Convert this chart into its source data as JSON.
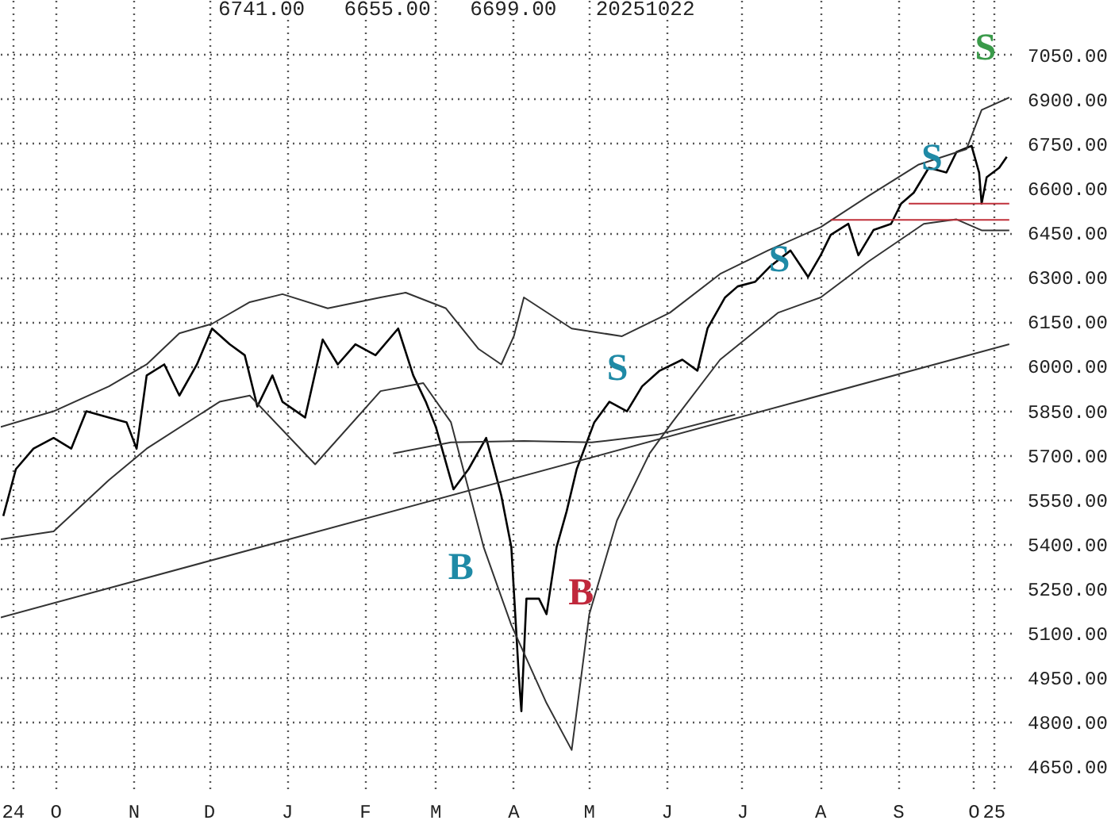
{
  "chart_data": {
    "type": "line",
    "xlim": [
      "2024-09-09",
      "2025-10-16"
    ],
    "ylim": [
      4576,
      7234
    ],
    "xticks": [
      {
        "value": "2024-09-14",
        "label": "24"
      },
      {
        "value": "2024-10-01",
        "label": "O"
      },
      {
        "value": "2024-11-01",
        "label": "N"
      },
      {
        "value": "2024-12-01",
        "label": "D"
      },
      {
        "value": "2025-01-01",
        "label": "J"
      },
      {
        "value": "2025-02-01",
        "label": "F"
      },
      {
        "value": "2025-03-01",
        "label": "M"
      },
      {
        "value": "2025-04-01",
        "label": "A"
      },
      {
        "value": "2025-05-01",
        "label": "M"
      },
      {
        "value": "2025-06-01",
        "label": "J"
      },
      {
        "value": "2025-07-01",
        "label": "J"
      },
      {
        "value": "2025-08-01",
        "label": "A"
      },
      {
        "value": "2025-09-01",
        "label": "S"
      },
      {
        "value": "2025-10-01",
        "label": "O"
      },
      {
        "value": "2025-10-09",
        "label": "25"
      }
    ],
    "yticks": [
      {
        "value": 4650,
        "label": "4650.00"
      },
      {
        "value": 4800,
        "label": "4800.00"
      },
      {
        "value": 4950,
        "label": "4950.00"
      },
      {
        "value": 5100,
        "label": "5100.00"
      },
      {
        "value": 5250,
        "label": "5250.00"
      },
      {
        "value": 5400,
        "label": "5400.00"
      },
      {
        "value": 5550,
        "label": "5550.00"
      },
      {
        "value": 5700,
        "label": "5700.00"
      },
      {
        "value": 5850,
        "label": "5850.00"
      },
      {
        "value": 6000,
        "label": "6000.00"
      },
      {
        "value": 6150,
        "label": "6150.00"
      },
      {
        "value": 6300,
        "label": "6300.00"
      },
      {
        "value": 6450,
        "label": "6450.00"
      },
      {
        "value": 6600,
        "label": "6600.00"
      },
      {
        "value": 6750,
        "label": "6750.00"
      },
      {
        "value": 6900,
        "label": "6900.00"
      },
      {
        "value": 7050,
        "label": "7050.00"
      }
    ],
    "grid": true,
    "annotations": [
      "6741.00",
      "6655.00",
      "6699.00",
      "20251022",
      "B",
      "B",
      "S",
      "S",
      "S",
      "S"
    ],
    "series": [
      {
        "color": "#000000",
        "x": [
          "2024-09-10",
          "2024-09-15",
          "2024-09-22",
          "2024-09-30",
          "2024-10-07",
          "2024-10-13",
          "2024-10-22",
          "2024-10-29",
          "2024-11-02",
          "2024-11-06",
          "2024-11-13",
          "2024-11-19",
          "2024-11-26",
          "2024-12-02",
          "2024-12-09",
          "2024-12-15",
          "2024-12-20",
          "2024-12-26",
          "2024-12-30",
          "2025-01-08",
          "2025-01-15",
          "2025-01-21",
          "2025-01-28",
          "2025-02-05",
          "2025-02-14",
          "2025-02-20",
          "2025-02-25",
          "2025-03-01",
          "2025-03-08",
          "2025-03-14",
          "2025-03-21",
          "2025-03-27",
          "2025-03-31",
          "2025-04-03",
          "2025-04-04",
          "2025-04-06",
          "2025-04-11",
          "2025-04-14",
          "2025-04-18",
          "2025-04-22",
          "2025-04-26",
          "2025-05-03",
          "2025-05-09",
          "2025-05-16",
          "2025-05-22",
          "2025-05-29",
          "2025-06-07",
          "2025-06-13",
          "2025-06-17",
          "2025-06-24",
          "2025-06-29",
          "2025-07-06",
          "2025-07-12",
          "2025-07-20",
          "2025-07-27",
          "2025-08-01",
          "2025-08-05",
          "2025-08-12",
          "2025-08-16",
          "2025-08-22",
          "2025-08-29",
          "2025-09-02",
          "2025-09-07",
          "2025-09-13",
          "2025-09-20",
          "2025-09-24",
          "2025-09-30",
          "2025-10-03",
          "2025-10-04",
          "2025-10-06",
          "2025-10-11",
          "2025-10-14"
        ],
        "values": [
          5497,
          5655,
          5724,
          5760,
          5724,
          5850,
          5829,
          5813,
          5724,
          5971,
          6008,
          5903,
          6008,
          6129,
          6076,
          6039,
          5866,
          5971,
          5882,
          5829,
          6092,
          6008,
          6076,
          6039,
          6129,
          5971,
          5882,
          5797,
          5587,
          5655,
          5760,
          5566,
          5392,
          4955,
          4839,
          5218,
          5218,
          5166,
          5392,
          5513,
          5655,
          5813,
          5882,
          5850,
          5934,
          5987,
          6024,
          5987,
          6129,
          6234,
          6271,
          6287,
          6339,
          6392,
          6303,
          6376,
          6445,
          6482,
          6376,
          6461,
          6482,
          6550,
          6587,
          6671,
          6655,
          6724,
          6745,
          6655,
          6550,
          6639,
          6671,
          6708
        ]
      },
      {
        "color": "#333333",
        "x": [
          "2024-09-09",
          "2024-09-30",
          "2024-10-22",
          "2024-11-06",
          "2024-11-19",
          "2024-12-02",
          "2024-12-17",
          "2024-12-30",
          "2025-01-17",
          "2025-02-07",
          "2025-02-17",
          "2025-03-05",
          "2025-03-18",
          "2025-03-27",
          "2025-04-01",
          "2025-04-05",
          "2025-04-24",
          "2025-05-14",
          "2025-06-02",
          "2025-06-22",
          "2025-07-11",
          "2025-08-01",
          "2025-08-20",
          "2025-09-09",
          "2025-09-28",
          "2025-10-04",
          "2025-10-15"
        ],
        "values": [
          5797,
          5850,
          5934,
          6008,
          6113,
          6145,
          6218,
          6245,
          6197,
          6234,
          6250,
          6197,
          6060,
          6008,
          6103,
          6234,
          6129,
          6103,
          6182,
          6313,
          6392,
          6471,
          6576,
          6682,
          6734,
          6866,
          6908
        ]
      },
      {
        "color": "#333333",
        "x": [
          "2024-09-09",
          "2024-09-30",
          "2024-10-22",
          "2024-11-06",
          "2024-12-05",
          "2024-12-17",
          "2025-01-12",
          "2025-02-07",
          "2025-02-24",
          "2025-03-07",
          "2025-03-20",
          "2025-03-31",
          "2025-04-14",
          "2025-04-24",
          "2025-05-01",
          "2025-05-12",
          "2025-05-25",
          "2025-06-03",
          "2025-06-22",
          "2025-07-15",
          "2025-08-01",
          "2025-08-20",
          "2025-09-11",
          "2025-09-24",
          "2025-10-04",
          "2025-10-15"
        ],
        "values": [
          5418,
          5445,
          5618,
          5724,
          5882,
          5903,
          5671,
          5918,
          5945,
          5813,
          5392,
          5129,
          4866,
          4708,
          5166,
          5482,
          5708,
          5813,
          6024,
          6182,
          6234,
          6355,
          6482,
          6497,
          6460,
          6460
        ]
      },
      {
        "color": "#333333",
        "x": [
          "2025-02-12",
          "2025-03-07",
          "2025-04-05",
          "2025-05-02",
          "2025-05-28",
          "2025-06-28"
        ],
        "values": [
          5708,
          5745,
          5750,
          5745,
          5771,
          5839
        ]
      },
      {
        "color": "#333333",
        "x": [
          "2024-09-09",
          "2025-10-15"
        ],
        "values": [
          5155,
          6076
        ]
      },
      {
        "color": "#c0303a",
        "x": [
          "2025-09-05",
          "2025-10-15"
        ],
        "values": [
          6550,
          6550
        ]
      },
      {
        "color": "#c0303a",
        "x": [
          "2025-08-05",
          "2025-10-15"
        ],
        "values": [
          6495,
          6495
        ]
      }
    ]
  }
}
